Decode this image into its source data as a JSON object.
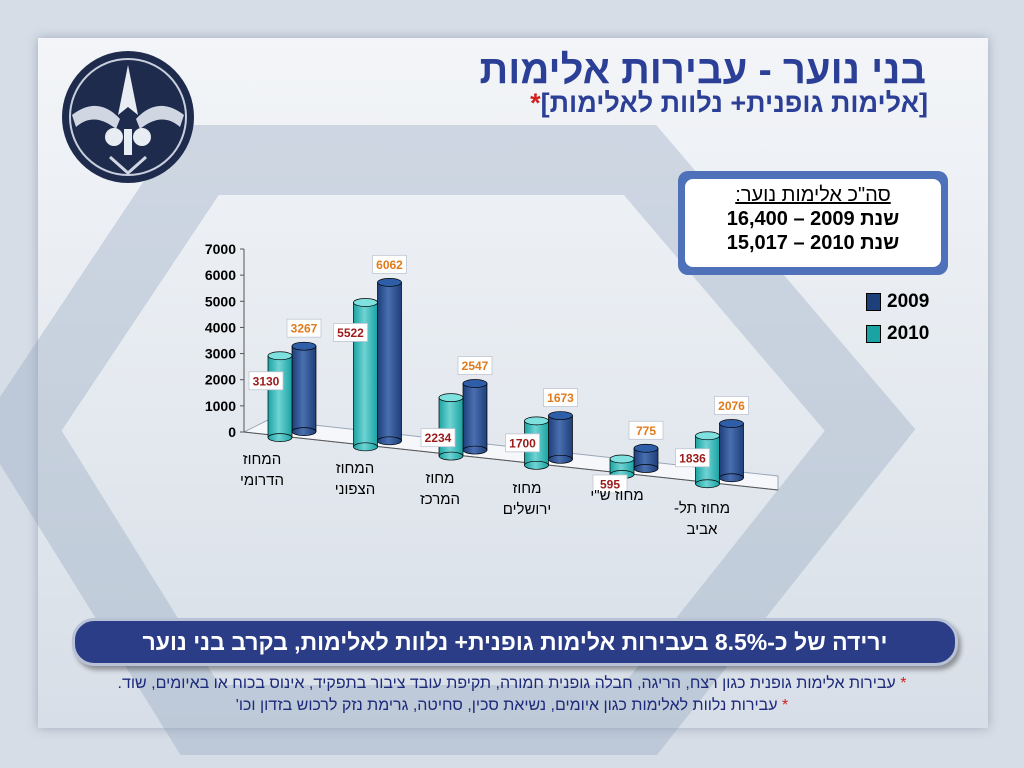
{
  "title": "בני נוער - עבירות אלימות",
  "subtitle": "[אלימות גופנית+ נלוות לאלימות]",
  "subtitle_mark": "*",
  "summary": {
    "title": "סה\"כ אלימות נוער:",
    "line1": "שנת 2009 – 16,400",
    "line2": "שנת 2010 – 15,017"
  },
  "banner": "ירידה של כ-8.5% בעבירות אלימות גופנית+ נלוות לאלימות, בקרב בני נוער",
  "footnotes": [
    {
      "mark": "*",
      "text": "עבירות אלימות גופנית כגון רצח, הריגה, חבלה גופנית חמורה, תקיפת עובד ציבור בתפקיד, אינוס בכוח או באיומים, שוד."
    },
    {
      "mark": "*",
      "text": "עבירות נלוות לאלימות כגון איומים, נשיאת סכין, סחיטה, גרימת נזק לרכוש בזדון וכו'"
    }
  ],
  "colors": {
    "series_2009": "#1d3f7a",
    "series_2010": "#1aa3a3",
    "label_2009": "#e07a1c",
    "label_2010": "#9b1a1a",
    "title": "#2b3f97",
    "banner_bg": "#2a3d86"
  },
  "chart_data": {
    "type": "bar",
    "style": "3d-cylinder",
    "categories": [
      "המחוז הדרומי",
      "המחוז הצפוני",
      "מחוז המרכז",
      "מחוז ירושלים",
      "מחוז ש\"י",
      "מחוז תל-אביב"
    ],
    "series": [
      {
        "name": "2009",
        "values": [
          3267,
          6062,
          2547,
          1673,
          775,
          2076
        ]
      },
      {
        "name": "2010",
        "values": [
          3130,
          5522,
          2234,
          1700,
          595,
          1836
        ]
      }
    ],
    "ylim": [
      0,
      7000
    ],
    "yticks": [
      0,
      1000,
      2000,
      3000,
      4000,
      5000,
      6000,
      7000
    ],
    "legend": "right",
    "grid": false
  }
}
